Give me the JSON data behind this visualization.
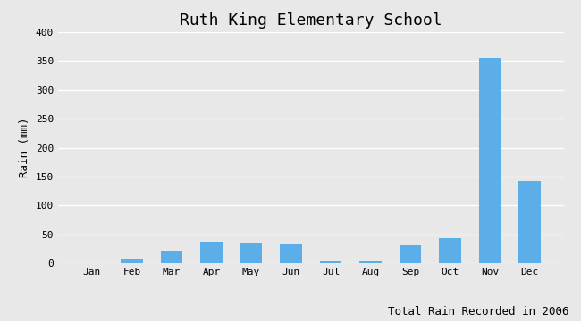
{
  "title": "Ruth King Elementary School",
  "xlabel": "Total Rain Recorded in 2006",
  "ylabel": "Rain (mm)",
  "categories": [
    "Jan",
    "Feb",
    "Mar",
    "Apr",
    "May",
    "Jun",
    "Jul",
    "Aug",
    "Sep",
    "Oct",
    "Nov",
    "Dec"
  ],
  "values": [
    0,
    8,
    20,
    37,
    35,
    33,
    4,
    4,
    31,
    44,
    355,
    143
  ],
  "bar_color": "#5BAEE8",
  "ylim": [
    0,
    400
  ],
  "yticks": [
    0,
    50,
    100,
    150,
    200,
    250,
    300,
    350,
    400
  ],
  "background_color": "#E8E8E8",
  "title_fontsize": 13,
  "label_fontsize": 9,
  "tick_fontsize": 8,
  "font_family": "monospace"
}
